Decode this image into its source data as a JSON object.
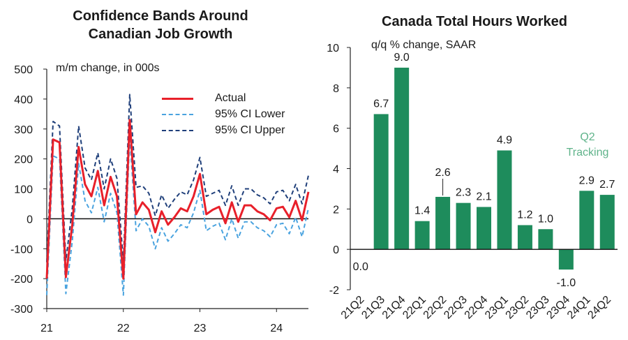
{
  "left_panel": {
    "title_line1": "Confidence Bands Around",
    "title_line2": "Canadian Job Growth",
    "unit": "m/m change, in 000s",
    "legend": [
      {
        "label": "Actual",
        "color": "#e8202a",
        "style": "solid"
      },
      {
        "label": "95% CI Lower",
        "color": "#4aa3df",
        "style": "dashed"
      },
      {
        "label": "95% CI Upper",
        "color": "#1f3f7a",
        "style": "dashed"
      }
    ]
  },
  "right_panel": {
    "title": "Canada Total Hours Worked",
    "unit": "q/q % change, SAAR",
    "tracking_line1": "Q2",
    "tracking_line2": "Tracking"
  },
  "chart_data": [
    {
      "type": "line",
      "title": "Confidence Bands Around Canadian Job Growth",
      "ylabel": "m/m change, in 000s",
      "ylim": [
        -300,
        500
      ],
      "yticks": [
        500,
        400,
        300,
        200,
        100,
        0,
        -100,
        -200,
        -300
      ],
      "xlim": [
        0,
        41
      ],
      "xticks": [
        {
          "x": 0,
          "label": "21"
        },
        {
          "x": 12,
          "label": "22"
        },
        {
          "x": 24,
          "label": "23"
        },
        {
          "x": 36,
          "label": "24"
        }
      ],
      "x": [
        0,
        1,
        2,
        3,
        4,
        5,
        6,
        7,
        8,
        9,
        10,
        11,
        12,
        13,
        14,
        15,
        16,
        17,
        18,
        19,
        20,
        21,
        22,
        23,
        24,
        25,
        26,
        27,
        28,
        29,
        30,
        31,
        32,
        33,
        34,
        35,
        36,
        37,
        38,
        39,
        40,
        41
      ],
      "series": [
        {
          "name": "Actual",
          "color": "#e8202a",
          "values": [
            -200,
            265,
            255,
            -195,
            -20,
            240,
            115,
            75,
            160,
            45,
            140,
            75,
            -200,
            330,
            15,
            55,
            30,
            -45,
            25,
            -20,
            5,
            35,
            25,
            75,
            150,
            15,
            30,
            40,
            -15,
            55,
            -10,
            45,
            45,
            25,
            15,
            -5,
            35,
            40,
            5,
            60,
            -5,
            90
          ]
        },
        {
          "name": "95% CI Lower",
          "color": "#4aa3df",
          "values": [
            -255,
            210,
            200,
            -250,
            -75,
            185,
            60,
            20,
            105,
            -10,
            85,
            20,
            -255,
            275,
            -40,
            0,
            -25,
            -100,
            -30,
            -75,
            -50,
            -20,
            -30,
            20,
            95,
            -40,
            -25,
            -15,
            -70,
            0,
            -65,
            -10,
            -10,
            -30,
            -40,
            -60,
            -20,
            -15,
            -50,
            5,
            -60,
            35
          ]
        },
        {
          "name": "95% CI Upper",
          "color": "#1f3f7a",
          "values": [
            -145,
            325,
            310,
            -140,
            35,
            310,
            170,
            130,
            220,
            100,
            200,
            135,
            -145,
            415,
            105,
            110,
            85,
            10,
            80,
            35,
            65,
            90,
            80,
            130,
            205,
            75,
            85,
            95,
            45,
            110,
            45,
            100,
            100,
            80,
            70,
            50,
            90,
            95,
            60,
            115,
            50,
            145
          ]
        }
      ]
    },
    {
      "type": "bar",
      "title": "Canada Total Hours Worked",
      "ylabel": "q/q % change, SAAR",
      "ylim": [
        -2,
        10
      ],
      "yticks": [
        10,
        8,
        6,
        4,
        2,
        0,
        -2
      ],
      "categories": [
        "21Q2",
        "21Q3",
        "21Q4",
        "22Q1",
        "22Q2",
        "22Q3",
        "22Q4",
        "23Q1",
        "23Q2",
        "23Q3",
        "23Q4",
        "24Q1",
        "24Q2"
      ],
      "values": [
        0.0,
        6.7,
        9.0,
        1.4,
        2.6,
        2.3,
        2.1,
        4.9,
        1.2,
        1.0,
        -1.0,
        2.9,
        2.7
      ],
      "labels": [
        "0.0",
        "6.7",
        "9.0",
        "1.4",
        "2.6",
        "2.3",
        "2.1",
        "4.9",
        "1.2",
        "1.0",
        "-1.0",
        "2.9",
        "2.7"
      ],
      "bar_color": "#1e8c5c"
    }
  ]
}
